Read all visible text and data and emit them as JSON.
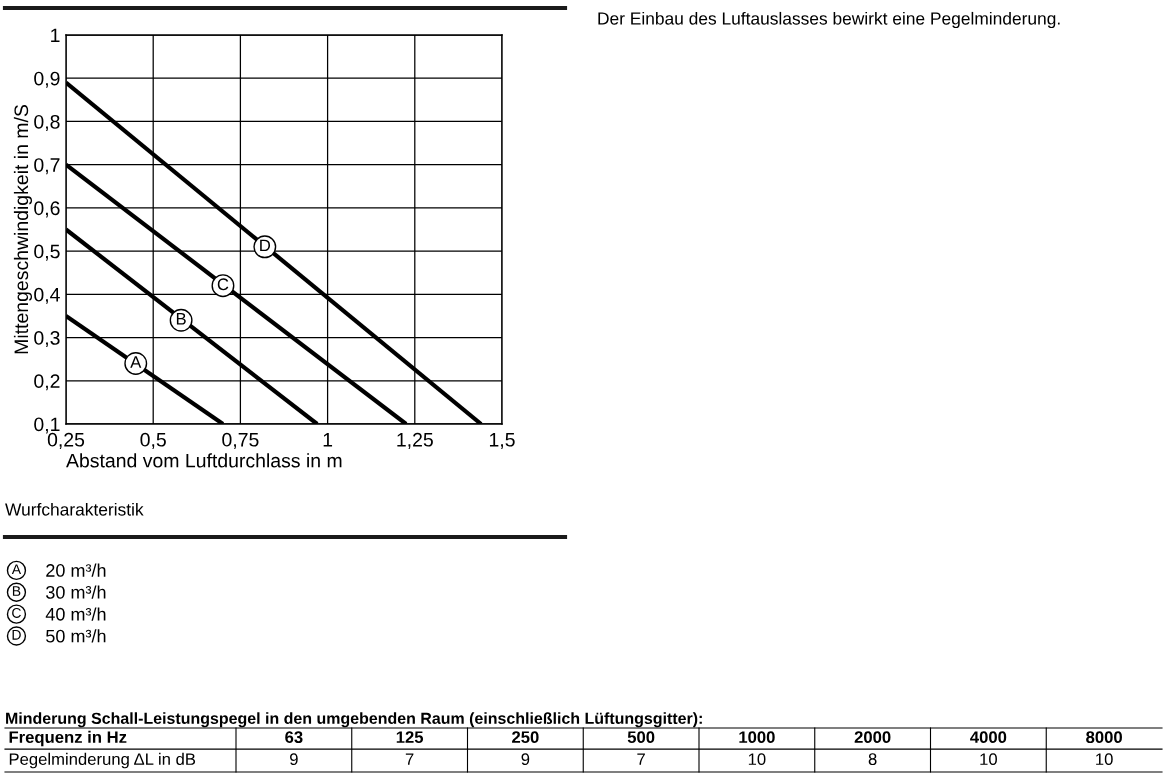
{
  "chart_data": [
    {
      "type": "line",
      "title": "Wurfcharakteristik",
      "xlabel": "Abstand vom Luftdurchlass in m",
      "ylabel": "Mittengeschwindigkeit in m/S",
      "series": [
        {
          "name": "20 m³/h",
          "color": "#000000",
          "x": [
            0.25,
            0.7
          ],
          "values": [
            0.35,
            0.1
          ]
        },
        {
          "name": "30 m³/h",
          "color": "#000000",
          "x": [
            0.25,
            0.97
          ],
          "values": [
            0.55,
            0.1
          ]
        },
        {
          "name": "40 m³/h",
          "color": "#000000",
          "x": [
            0.25,
            1.225
          ],
          "values": [
            0.7,
            0.1
          ]
        },
        {
          "name": "50 m³/h",
          "color": "#000000",
          "x": [
            0.25,
            1.44
          ],
          "values": [
            0.89,
            0.1
          ]
        }
      ],
      "xlim": [
        0.25,
        1.5
      ],
      "xticks": [
        {
          "value": 0.25,
          "label": "0,25"
        },
        {
          "value": 0.5,
          "label": "0,5"
        },
        {
          "value": 0.75,
          "label": "0,75"
        },
        1,
        {
          "value": 1.25,
          "label": "1,25"
        },
        {
          "value": 1.5,
          "label": "1,5"
        }
      ],
      "ylim": [
        0.1,
        1
      ],
      "yticks": [
        {
          "value": 0.1,
          "label": "0,1"
        },
        {
          "value": 0.2,
          "label": "0,2"
        },
        {
          "value": 0.3,
          "label": "0,3"
        },
        {
          "value": 0.4,
          "label": "0,4"
        },
        {
          "value": 0.5,
          "label": "0,5"
        },
        {
          "value": 0.6,
          "label": "0,6"
        },
        {
          "value": 0.7,
          "label": "0,7"
        },
        {
          "value": 0.8,
          "label": "0,8"
        },
        {
          "value": 0.9,
          "label": "0,9"
        },
        1
      ],
      "grid": true,
      "legend": "bottom",
      "annotations": [
        "Der Einbau des Luftauslasses bewirkt eine Pegelminderung.",
        {
          "text": "A",
          "x": 0.45,
          "y": 0.24
        },
        {
          "text": "B",
          "x": 0.58,
          "y": 0.34
        },
        {
          "text": "C",
          "x": 0.7,
          "y": 0.42
        },
        {
          "text": "D",
          "x": 0.82,
          "y": 0.51
        }
      ]
    },
    {
      "type": "other",
      "title": "Minderung Schall-Leistungspegel in den umgebenden Raum (einschließlich Lüftungsgitter):",
      "xlabel": "Frequenz in Hz",
      "ylabel": "Pegelminderung ΔL in dB",
      "categories": [
        "63",
        "125",
        "250",
        "500",
        "1000",
        "2000",
        "4000",
        "8000"
      ],
      "values": [
        9,
        7,
        9,
        7,
        10,
        8,
        10,
        10
      ],
      "data_labels": true
    }
  ]
}
